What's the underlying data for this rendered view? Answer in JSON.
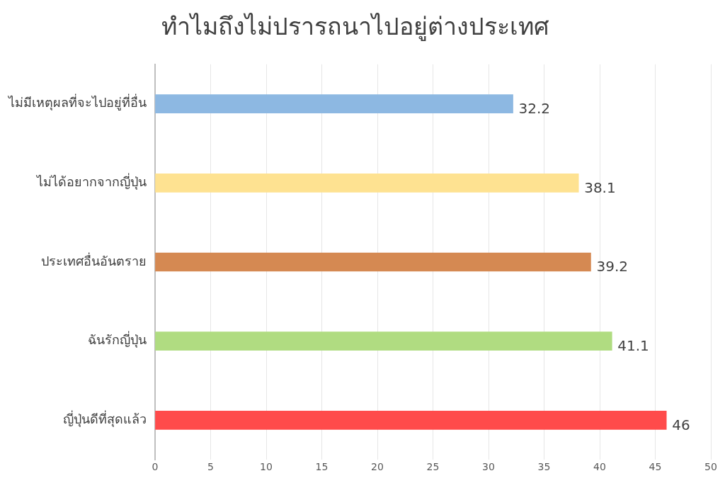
{
  "chart_data": {
    "type": "bar",
    "orientation": "horizontal",
    "title": "ทำไมถึงไม่ปรารถนาไปอยู่ต่างประเทศ",
    "categories": [
      "ไม่มีเหตุผลที่จะไปอยู่ที่อื่น",
      "ไม่ได้อยากจากญี่ปุ่น",
      "ประเทศอื่นอันตราย",
      "ฉันรักญี่ปุ่น",
      "ญี่ปุ่นดีที่สุดแล้ว"
    ],
    "values": [
      32.2,
      38.1,
      39.2,
      41.1,
      46
    ],
    "colors": [
      "#8db8e2",
      "#fee291",
      "#d58952",
      "#b0dc81",
      "#ff4b4b"
    ],
    "xlim": [
      0,
      50
    ],
    "xticks": [
      0,
      5,
      10,
      15,
      20,
      25,
      30,
      35,
      40,
      45,
      50
    ],
    "grid": "x",
    "data_labels": true,
    "legend": false
  }
}
